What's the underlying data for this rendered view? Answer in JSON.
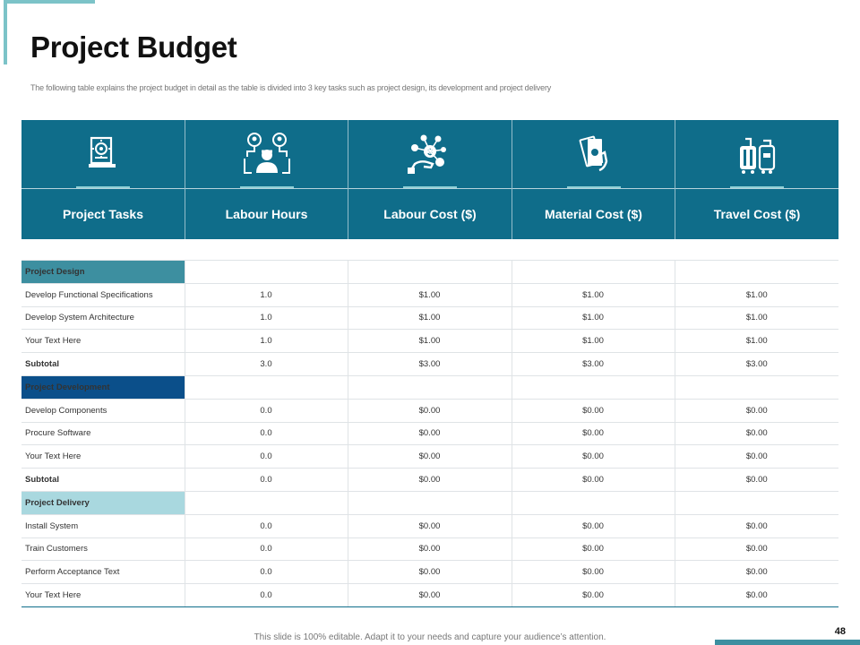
{
  "title": "Project Budget",
  "subtitle": "The following table explains the project budget in detail as the table is divided into 3 key tasks such as project design, its development and project delivery",
  "colors": {
    "header_band": "#0f6d8a",
    "section_design": "#3d8fa0",
    "section_development": "#0b4f8a",
    "section_delivery": "#a9d8df",
    "accent": "#7cc3c8"
  },
  "columns": [
    {
      "label": "Project Tasks",
      "icon": "document-gear-icon"
    },
    {
      "label": "Labour Hours",
      "icon": "workers-network-icon"
    },
    {
      "label": "Labour Cost ($)",
      "icon": "hand-money-network-icon"
    },
    {
      "label": "Material Cost ($)",
      "icon": "banknotes-hand-icon"
    },
    {
      "label": "Travel Cost ($)",
      "icon": "luggage-icon"
    }
  ],
  "sections": [
    {
      "name": "Project Design",
      "rows": [
        [
          "Develop Functional Specifications",
          "1.0",
          "$1.00",
          "$1.00",
          "$1.00"
        ],
        [
          "Develop System Architecture",
          "1.0",
          "$1.00",
          "$1.00",
          "$1.00"
        ],
        [
          "Your Text Here",
          "1.0",
          "$1.00",
          "$1.00",
          "$1.00"
        ]
      ],
      "subtotal": [
        "Subtotal",
        "3.0",
        "$3.00",
        "$3.00",
        "$3.00"
      ]
    },
    {
      "name": "Project Development",
      "rows": [
        [
          "Develop Components",
          "0.0",
          "$0.00",
          "$0.00",
          "$0.00"
        ],
        [
          "Procure Software",
          "0.0",
          "$0.00",
          "$0.00",
          "$0.00"
        ],
        [
          "Your Text Here",
          "0.0",
          "$0.00",
          "$0.00",
          "$0.00"
        ]
      ],
      "subtotal": [
        "Subtotal",
        "0.0",
        "$0.00",
        "$0.00",
        "$0.00"
      ]
    },
    {
      "name": "Project Delivery",
      "rows": [
        [
          "Install System",
          "0.0",
          "$0.00",
          "$0.00",
          "$0.00"
        ],
        [
          "Train Customers",
          "0.0",
          "$0.00",
          "$0.00",
          "$0.00"
        ],
        [
          "Perform Acceptance Text",
          "0.0",
          "$0.00",
          "$0.00",
          "$0.00"
        ],
        [
          "Your Text Here",
          "0.0",
          "$0.00",
          "$0.00",
          "$0.00"
        ]
      ]
    }
  ],
  "footer": "This slide is 100% editable. Adapt it to your needs and capture your audience’s attention.",
  "page_number": "48"
}
